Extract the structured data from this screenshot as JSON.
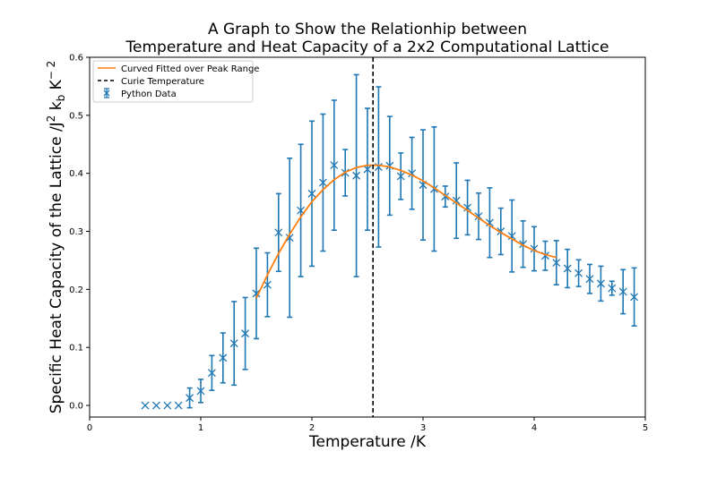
{
  "chart_data": {
    "type": "scatter",
    "title_lines": [
      "A Graph to Show the Relationhip between",
      "Temperature and Heat Capacity of a 2x2 Computational Lattice"
    ],
    "xlabel": "Temperature /K",
    "ylabel_parts": {
      "main": "Specific Heat Capacity of the Lattice /J",
      "sup1": "2",
      "mid": " k",
      "sub": "b",
      "mid2": " K",
      "sup2": "− 2"
    },
    "xlim": [
      0,
      5
    ],
    "ylim": [
      -0.02,
      0.6
    ],
    "xticks": [
      0,
      1,
      2,
      3,
      4,
      5
    ],
    "yticks": [
      0.0,
      0.1,
      0.2,
      0.3,
      0.4,
      0.5,
      0.6
    ],
    "xtick_labels": [
      "0",
      "1",
      "2",
      "3",
      "4",
      "5"
    ],
    "ytick_labels": [
      "0.0",
      "0.1",
      "0.2",
      "0.3",
      "0.4",
      "0.5",
      "0.6"
    ],
    "legend_position": "top-left",
    "colors": {
      "data": "#1f77b4",
      "fit": "#ff7f0e",
      "curie": "#000000"
    },
    "series": [
      {
        "name": "Python Data",
        "kind": "errorbar",
        "x": [
          0.5,
          0.6,
          0.7,
          0.8,
          0.9,
          1.0,
          1.1,
          1.2,
          1.3,
          1.4,
          1.5,
          1.6,
          1.7,
          1.8,
          1.9,
          2.0,
          2.1,
          2.2,
          2.3,
          2.4,
          2.5,
          2.6,
          2.7,
          2.8,
          2.9,
          3.0,
          3.1,
          3.2,
          3.3,
          3.4,
          3.5,
          3.6,
          3.7,
          3.8,
          3.9,
          4.0,
          4.1,
          4.2,
          4.3,
          4.4,
          4.5,
          4.6,
          4.7,
          4.8,
          4.9
        ],
        "y": [
          0,
          0,
          0,
          0,
          0.013,
          0.025,
          0.056,
          0.082,
          0.107,
          0.124,
          0.193,
          0.208,
          0.298,
          0.289,
          0.336,
          0.365,
          0.384,
          0.414,
          0.401,
          0.396,
          0.407,
          0.411,
          0.413,
          0.395,
          0.4,
          0.38,
          0.373,
          0.36,
          0.353,
          0.341,
          0.326,
          0.315,
          0.3,
          0.292,
          0.278,
          0.27,
          0.258,
          0.246,
          0.236,
          0.228,
          0.218,
          0.21,
          0.202,
          0.196,
          0.187
        ],
        "yerr": [
          0,
          0,
          0,
          0,
          0.017,
          0.02,
          0.03,
          0.043,
          0.072,
          0.062,
          0.078,
          0.055,
          0.067,
          0.137,
          0.114,
          0.125,
          0.118,
          0.112,
          0.04,
          0.174,
          0.105,
          0.138,
          0.085,
          0.04,
          0.062,
          0.095,
          0.107,
          0.018,
          0.065,
          0.047,
          0.04,
          0.06,
          0.04,
          0.062,
          0.04,
          0.038,
          0.025,
          0.038,
          0.033,
          0.023,
          0.025,
          0.03,
          0.012,
          0.038,
          0.05
        ]
      },
      {
        "name": "Curved Fitted over Peak Range",
        "kind": "line",
        "x": [
          1.5,
          1.6,
          1.7,
          1.8,
          1.9,
          2.0,
          2.1,
          2.2,
          2.3,
          2.4,
          2.5,
          2.6,
          2.7,
          2.8,
          2.9,
          3.0,
          3.1,
          3.2,
          3.3,
          3.4,
          3.5,
          3.6,
          3.7,
          3.8,
          3.9,
          4.0,
          4.1,
          4.2
        ],
        "y": [
          0.185,
          0.225,
          0.262,
          0.295,
          0.325,
          0.351,
          0.372,
          0.389,
          0.402,
          0.41,
          0.414,
          0.414,
          0.411,
          0.405,
          0.397,
          0.387,
          0.375,
          0.362,
          0.349,
          0.336,
          0.323,
          0.31,
          0.298,
          0.287,
          0.276,
          0.267,
          0.26,
          0.255
        ]
      },
      {
        "name": "Curie Temperature",
        "kind": "vline",
        "x": 2.55
      }
    ]
  }
}
